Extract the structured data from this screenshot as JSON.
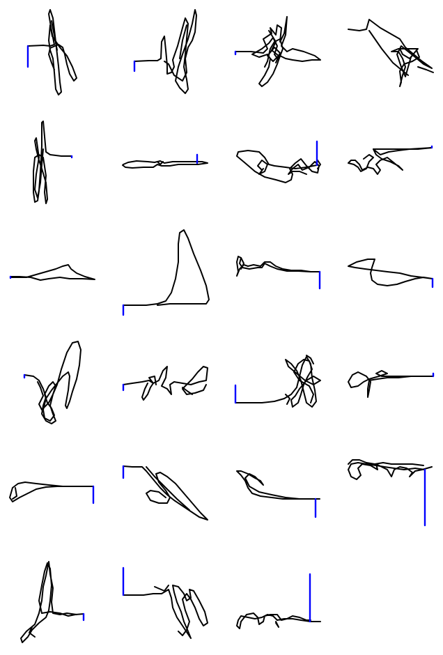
{
  "colors": {
    "background": "#ffffff",
    "trajectory": "#000000",
    "scale_bar": "#0000ff"
  },
  "grid": {
    "rows": 6,
    "columns": 4,
    "panel_count": 23
  },
  "icons": {
    "trajectory": "trajectory-trace-icon",
    "scale_bar": "scale-bar-icon"
  }
}
